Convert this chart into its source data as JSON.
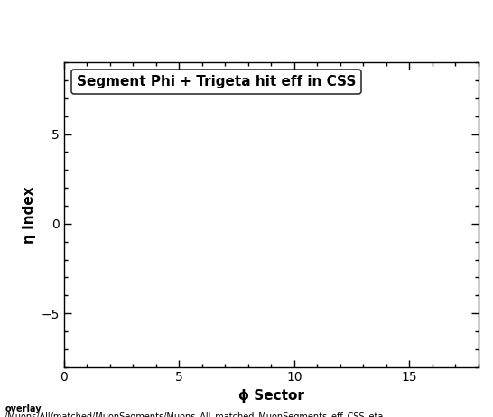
{
  "title": "Segment Phi + Trigeta hit eff in CSS",
  "xlabel": "ϕ Sector",
  "ylabel": "η Index",
  "xlim": [
    0,
    18
  ],
  "ylim": [
    -8,
    9
  ],
  "xticks": [
    0,
    5,
    10,
    15
  ],
  "yticks": [
    -5,
    0,
    5
  ],
  "background_color": "#ffffff",
  "plot_bg_color": "#ffffff",
  "footer_line1": "overlay",
  "footer_line2": "/Muons/All/matched/MuonSegments/Muons_All_matched_MuonSegments_eff_CSS_eta",
  "title_fontsize": 11,
  "axis_label_fontsize": 11,
  "tick_fontsize": 10,
  "footer_fontsize": 7
}
